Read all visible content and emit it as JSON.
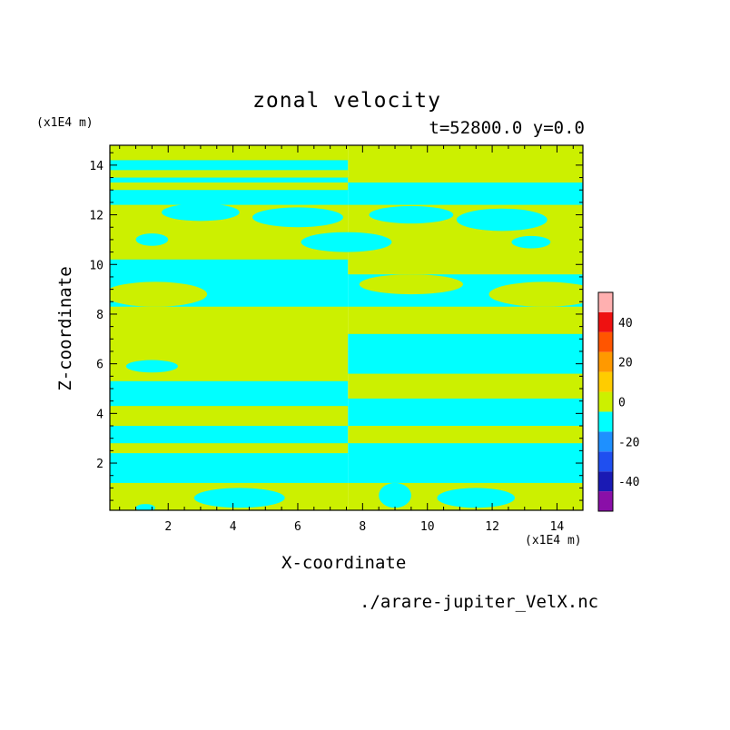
{
  "chart_data": {
    "type": "heatmap",
    "title": "zonal velocity",
    "subtitle": "t=52800.0 y=0.0",
    "xlabel": "X-coordinate",
    "ylabel": "Z-coordinate",
    "x_unit": "(x1E4 m)",
    "y_unit": "(x1E4 m)",
    "xlim": [
      0.2,
      14.8
    ],
    "ylim": [
      0.1,
      14.8
    ],
    "x_ticks": [
      2,
      4,
      6,
      8,
      10,
      12,
      14
    ],
    "y_ticks": [
      2,
      4,
      6,
      8,
      10,
      12,
      14
    ],
    "colorbar": {
      "range": [
        -50,
        50
      ],
      "ticks": [
        -40,
        -20,
        0,
        20,
        40
      ],
      "levels": [
        {
          "lo": -50,
          "hi": -40,
          "color": "#8a0fa8"
        },
        {
          "lo": -40,
          "hi": -30,
          "color": "#1a1ab4"
        },
        {
          "lo": -30,
          "hi": -20,
          "color": "#1f4ff0"
        },
        {
          "lo": -20,
          "hi": -10,
          "color": "#1e90ff"
        },
        {
          "lo": -10,
          "hi": 0,
          "color": "#00ffff"
        },
        {
          "lo": 0,
          "hi": 10,
          "color": "#ccf000"
        },
        {
          "lo": 10,
          "hi": 20,
          "color": "#ffcc00"
        },
        {
          "lo": 20,
          "hi": 30,
          "color": "#ff9900"
        },
        {
          "lo": 30,
          "hi": 40,
          "color": "#ff5500"
        },
        {
          "lo": 40,
          "hi": 50,
          "color": "#ee1111"
        },
        {
          "lo": 50,
          "hi": 60,
          "color": "#ffb0b0"
        }
      ]
    },
    "bands": [
      {
        "z": [
          14.2,
          14.8
        ],
        "left": 0,
        "right": 0
      },
      {
        "z": [
          13.8,
          14.2
        ],
        "left": -5,
        "right": 0
      },
      {
        "z": [
          13.5,
          13.8
        ],
        "left": 0,
        "right": 0
      },
      {
        "z": [
          13.3,
          13.5
        ],
        "left": -5,
        "right": 0
      },
      {
        "z": [
          13.0,
          13.3
        ],
        "left": 0,
        "right": -5
      },
      {
        "z": [
          12.4,
          13.0
        ],
        "left": -5,
        "right": -5
      },
      {
        "z": [
          11.2,
          12.4
        ],
        "left": 0,
        "right": 0
      },
      {
        "z": [
          10.2,
          11.2
        ],
        "left": 0,
        "right": 0
      },
      {
        "z": [
          9.6,
          10.2
        ],
        "left": -5,
        "right": 0
      },
      {
        "z": [
          8.3,
          9.6
        ],
        "left": -5,
        "right": -5
      },
      {
        "z": [
          7.2,
          8.3
        ],
        "left": 0,
        "right": 0
      },
      {
        "z": [
          6.5,
          7.2
        ],
        "left": 0,
        "right": -5
      },
      {
        "z": [
          5.6,
          6.5
        ],
        "left": 0,
        "right": -5
      },
      {
        "z": [
          5.3,
          5.6
        ],
        "left": 0,
        "right": 0
      },
      {
        "z": [
          4.6,
          5.3
        ],
        "left": -5,
        "right": 0
      },
      {
        "z": [
          4.3,
          4.6
        ],
        "left": -5,
        "right": -5
      },
      {
        "z": [
          3.5,
          4.3
        ],
        "left": 0,
        "right": -5
      },
      {
        "z": [
          2.8,
          3.5
        ],
        "left": -5,
        "right": 0
      },
      {
        "z": [
          2.4,
          2.8
        ],
        "left": 0,
        "right": -5
      },
      {
        "z": [
          1.2,
          2.4
        ],
        "left": -5,
        "right": -5
      },
      {
        "z": [
          0.1,
          1.2
        ],
        "left": 0,
        "right": 0
      }
    ],
    "blobs": [
      {
        "cx": 3.0,
        "cz": 12.1,
        "rx": 1.2,
        "rz": 0.35,
        "v": -5
      },
      {
        "cx": 6.0,
        "cz": 11.9,
        "rx": 1.4,
        "rz": 0.4,
        "v": -5
      },
      {
        "cx": 9.5,
        "cz": 12.0,
        "rx": 1.3,
        "rz": 0.35,
        "v": -5
      },
      {
        "cx": 12.3,
        "cz": 11.8,
        "rx": 1.4,
        "rz": 0.45,
        "v": -5
      },
      {
        "cx": 1.5,
        "cz": 11.0,
        "rx": 0.5,
        "rz": 0.25,
        "v": -5
      },
      {
        "cx": 13.2,
        "cz": 10.9,
        "rx": 0.6,
        "rz": 0.25,
        "v": -5
      },
      {
        "cx": 7.5,
        "cz": 10.9,
        "rx": 1.4,
        "rz": 0.4,
        "v": -5
      },
      {
        "cx": 1.6,
        "cz": 8.8,
        "rx": 1.6,
        "rz": 0.5,
        "v": 0
      },
      {
        "cx": 13.6,
        "cz": 8.8,
        "rx": 1.7,
        "rz": 0.5,
        "v": 0
      },
      {
        "cx": 9.5,
        "cz": 9.2,
        "rx": 1.6,
        "rz": 0.4,
        "v": 0
      },
      {
        "cx": 5.0,
        "cz": 9.3,
        "rx": 1.5,
        "rz": 0.35,
        "v": -5
      },
      {
        "cx": 1.5,
        "cz": 5.9,
        "rx": 0.8,
        "rz": 0.25,
        "v": -5
      },
      {
        "cx": 2.8,
        "cz": 3.1,
        "rx": 1.0,
        "rz": 0.25,
        "v": -5
      },
      {
        "cx": 12.0,
        "cz": 3.1,
        "rx": 1.2,
        "rz": 0.25,
        "v": 0
      },
      {
        "cx": 4.2,
        "cz": 0.6,
        "rx": 1.4,
        "rz": 0.4,
        "v": -5
      },
      {
        "cx": 9.0,
        "cz": 0.7,
        "rx": 0.5,
        "rz": 0.5,
        "v": -5
      },
      {
        "cx": 11.5,
        "cz": 0.6,
        "rx": 1.2,
        "rz": 0.4,
        "v": -5
      },
      {
        "cx": 1.3,
        "cz": 0.2,
        "rx": 0.3,
        "rz": 0.15,
        "v": -5
      },
      {
        "cx": 14.2,
        "cz": 0.2,
        "rx": 0.3,
        "rz": 0.15,
        "v": 0
      }
    ]
  },
  "footer": "./arare-jupiter_VelX.nc"
}
